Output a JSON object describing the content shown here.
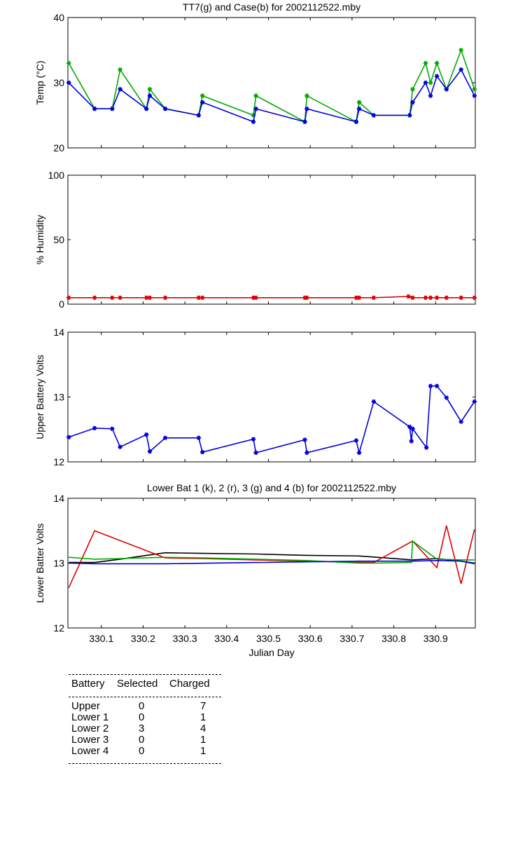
{
  "chart_data": [
    {
      "type": "line",
      "title": "TT7(g) and Case(b) for 2002112522.mby",
      "xlabel": "",
      "ylabel": "Temp  (°C)",
      "xlim": [
        330.02,
        330.995
      ],
      "ylim": [
        20,
        40
      ],
      "yticks": [
        "20",
        "30",
        "40"
      ],
      "series": [
        {
          "name": "TT7",
          "color": "#00aa00",
          "x": [
            330.022,
            330.084,
            330.126,
            330.145,
            330.208,
            330.216,
            330.253,
            330.333,
            330.342,
            330.464,
            330.47,
            330.587,
            330.592,
            330.71,
            330.717,
            330.752,
            330.838,
            330.845,
            330.876,
            330.888,
            330.903,
            330.926,
            330.961,
            330.993
          ],
          "y": [
            33,
            26,
            26,
            32,
            26,
            29,
            26,
            25,
            28,
            25,
            28,
            24,
            28,
            24,
            27,
            25,
            25,
            29,
            33,
            30,
            33,
            29,
            35,
            29
          ]
        },
        {
          "name": "Case",
          "color": "#0000dd",
          "x": [
            330.022,
            330.084,
            330.126,
            330.145,
            330.208,
            330.216,
            330.253,
            330.333,
            330.342,
            330.464,
            330.47,
            330.587,
            330.592,
            330.71,
            330.717,
            330.752,
            330.838,
            330.845,
            330.876,
            330.888,
            330.903,
            330.926,
            330.961,
            330.993
          ],
          "y": [
            30,
            26,
            26,
            29,
            26,
            28,
            26,
            25,
            27,
            24,
            26,
            24,
            26,
            24,
            26,
            25,
            25,
            27,
            30,
            28,
            31,
            29,
            32,
            28
          ]
        }
      ]
    },
    {
      "type": "line",
      "title": "",
      "xlabel": "",
      "ylabel": "% Humidity",
      "xlim": [
        330.02,
        330.995
      ],
      "ylim": [
        0,
        100
      ],
      "yticks": [
        "0",
        "50",
        "100"
      ],
      "series": [
        {
          "name": "Humidity",
          "color": "#dd0000",
          "x": [
            330.022,
            330.084,
            330.126,
            330.145,
            330.208,
            330.216,
            330.253,
            330.333,
            330.342,
            330.464,
            330.47,
            330.587,
            330.592,
            330.71,
            330.717,
            330.752,
            330.835,
            330.845,
            330.876,
            330.888,
            330.903,
            330.926,
            330.961,
            330.993
          ],
          "y": [
            5,
            5,
            5,
            5,
            5,
            5,
            5,
            5,
            5,
            5,
            5,
            5,
            5,
            5,
            5,
            5,
            6,
            5,
            5,
            5,
            5,
            5,
            5,
            5
          ]
        }
      ]
    },
    {
      "type": "line",
      "title": "",
      "xlabel": "",
      "ylabel": "Upper Battery Volts",
      "xlim": [
        330.02,
        330.995
      ],
      "ylim": [
        12,
        14
      ],
      "yticks": [
        "12",
        "13",
        "14"
      ],
      "series": [
        {
          "name": "Upper",
          "color": "#0000dd",
          "x": [
            330.022,
            330.084,
            330.126,
            330.145,
            330.208,
            330.216,
            330.253,
            330.333,
            330.342,
            330.464,
            330.47,
            330.587,
            330.592,
            330.71,
            330.717,
            330.752,
            330.838,
            330.842,
            330.845,
            330.878,
            330.888,
            330.903,
            330.926,
            330.961,
            330.993
          ],
          "y": [
            12.38,
            12.52,
            12.51,
            12.23,
            12.42,
            12.16,
            12.37,
            12.37,
            12.15,
            12.35,
            12.14,
            12.34,
            12.14,
            12.33,
            12.14,
            12.93,
            12.54,
            12.32,
            12.51,
            12.22,
            13.17,
            13.17,
            12.99,
            12.62,
            12.93
          ]
        }
      ]
    },
    {
      "type": "line",
      "title": "Lower Bat 1 (k), 2 (r), 3 (g) and 4 (b) for 2002112522.mby",
      "xlabel": "Julian Day",
      "ylabel": "Lower Batter Volts",
      "xlim": [
        330.02,
        330.995
      ],
      "ylim": [
        12,
        14
      ],
      "yticks": [
        "12",
        "13",
        "14"
      ],
      "xticks": [
        "330.1",
        "330.2",
        "330.3",
        "330.4",
        "330.5",
        "330.6",
        "330.7",
        "330.8",
        "330.9"
      ],
      "series": [
        {
          "name": "Lower 1",
          "color": "#000000",
          "x": [
            330.022,
            330.084,
            330.145,
            330.208,
            330.253,
            330.342,
            330.47,
            330.592,
            330.717,
            330.845,
            330.903,
            330.961,
            330.993
          ],
          "y": [
            13.01,
            13.01,
            13.06,
            13.12,
            13.16,
            13.15,
            13.14,
            13.12,
            13.11,
            13.05,
            13.07,
            13.03,
            13.0
          ]
        },
        {
          "name": "Lower 2",
          "color": "#dd0000",
          "x": [
            330.022,
            330.084,
            330.253,
            330.342,
            330.47,
            330.592,
            330.717,
            330.752,
            330.845,
            330.903,
            330.926,
            330.961,
            330.993
          ],
          "y": [
            12.62,
            13.5,
            13.08,
            13.07,
            13.05,
            13.03,
            13.01,
            13.01,
            13.34,
            12.93,
            13.58,
            12.68,
            13.52
          ]
        },
        {
          "name": "Lower 3",
          "color": "#00aa00",
          "x": [
            330.022,
            330.084,
            330.145,
            330.253,
            330.342,
            330.47,
            330.592,
            330.717,
            330.752,
            330.842,
            330.845,
            330.903,
            330.961,
            330.993
          ],
          "y": [
            13.09,
            13.06,
            13.07,
            13.09,
            13.08,
            13.06,
            13.04,
            13.0,
            13.0,
            13.01,
            13.34,
            13.06,
            13.05,
            13.05
          ]
        },
        {
          "name": "Lower 4",
          "color": "#0000dd",
          "x": [
            330.022,
            330.084,
            330.253,
            330.47,
            330.717,
            330.845,
            330.903,
            330.961,
            330.993
          ],
          "y": [
            13.0,
            12.99,
            12.99,
            13.01,
            13.03,
            13.03,
            13.04,
            13.03,
            12.99
          ]
        }
      ]
    }
  ],
  "table": {
    "headers": [
      "Battery",
      "Selected",
      "Charged"
    ],
    "rows": [
      [
        "Upper",
        "0",
        "7"
      ],
      [
        "Lower 1",
        "0",
        "1"
      ],
      [
        "Lower 2",
        "3",
        "4"
      ],
      [
        "Lower 3",
        "0",
        "1"
      ],
      [
        "Lower 4",
        "0",
        "1"
      ]
    ]
  }
}
